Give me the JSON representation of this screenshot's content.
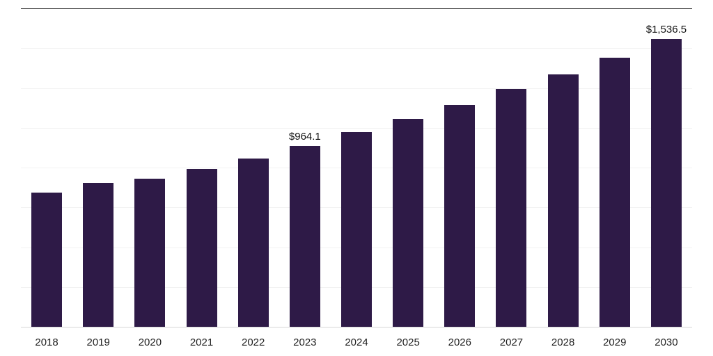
{
  "chart_data": {
    "type": "bar",
    "title": "",
    "xlabel": "",
    "ylabel": "",
    "categories": [
      "2018",
      "2019",
      "2020",
      "2021",
      "2022",
      "2023",
      "2024",
      "2025",
      "2026",
      "2027",
      "2028",
      "2029",
      "2030"
    ],
    "values": [
      716,
      768,
      790,
      841,
      897,
      964.1,
      1038,
      1108,
      1183,
      1270,
      1349,
      1436,
      1536.5
    ],
    "labeled_points": [
      {
        "category": "2023",
        "label": "$964.1"
      },
      {
        "category": "2030",
        "label": "$1,536.5"
      }
    ],
    "ylim": [
      0,
      1700
    ],
    "grid": true,
    "grid_divisions": 8,
    "legend": false,
    "bar_color": "#2e1a47",
    "grid_color": "#f2f2f2",
    "top_border_color": "#333333",
    "axis_color": "#d6d6d6",
    "tick_label_color": "#1f1f1f",
    "value_label_color": "#111111",
    "background": "#ffffff"
  }
}
